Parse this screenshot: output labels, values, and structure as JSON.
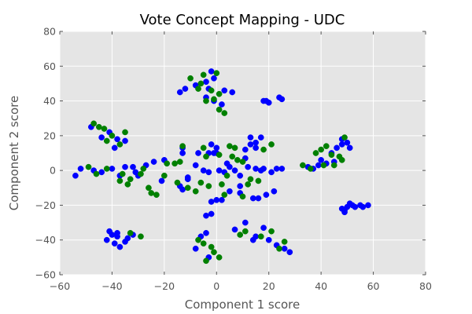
{
  "chart_data": {
    "type": "scatter",
    "title": "Vote Concept Mapping - UDC",
    "xlabel": "Component 1 score",
    "ylabel": "Component 2 score",
    "xlim": [
      -60,
      80
    ],
    "ylim": [
      -60,
      80
    ],
    "xticks": [
      "−60",
      "−40",
      "−20",
      "0",
      "20",
      "40",
      "60",
      "80"
    ],
    "yticks": [
      "−60",
      "−40",
      "−20",
      "0",
      "20",
      "40",
      "60",
      "80"
    ],
    "grid": true,
    "background_color": "#e5e5e5",
    "grid_color": "#ffffff",
    "series": [
      {
        "color": "#0000ff",
        "points": [
          [
            -2,
            57
          ],
          [
            -1,
            53
          ],
          [
            -4,
            51
          ],
          [
            -8,
            49
          ],
          [
            -12,
            47
          ],
          [
            -14,
            45
          ],
          [
            -3,
            47
          ],
          [
            3,
            46
          ],
          [
            6,
            45
          ],
          [
            -1,
            40
          ],
          [
            -4,
            42
          ],
          [
            2,
            38
          ],
          [
            18,
            40
          ],
          [
            19,
            40
          ],
          [
            20,
            39
          ],
          [
            24,
            42
          ],
          [
            25,
            41
          ],
          [
            -48,
            25
          ],
          [
            -41,
            22
          ],
          [
            -38,
            18
          ],
          [
            -35,
            17
          ],
          [
            -39,
            13
          ],
          [
            -44,
            19
          ],
          [
            -52,
            1
          ],
          [
            -54,
            -3
          ],
          [
            -47,
            0
          ],
          [
            -44,
            -1
          ],
          [
            -40,
            1
          ],
          [
            -35,
            2
          ],
          [
            -32,
            2
          ],
          [
            -31,
            -1
          ],
          [
            -37,
            -3
          ],
          [
            -24,
            5
          ],
          [
            -27,
            3
          ],
          [
            -20,
            6
          ],
          [
            -21,
            -6
          ],
          [
            -30,
            -3
          ],
          [
            -8,
            3
          ],
          [
            -7,
            10
          ],
          [
            -3,
            10
          ],
          [
            -1,
            10
          ],
          [
            0,
            10
          ],
          [
            0,
            13
          ],
          [
            -2,
            15
          ],
          [
            -13,
            10
          ],
          [
            -13,
            13
          ],
          [
            -3,
            -1
          ],
          [
            -5,
            0
          ],
          [
            -11,
            -4
          ],
          [
            -14,
            -9
          ],
          [
            -13,
            -11
          ],
          [
            -11,
            -5
          ],
          [
            1,
            0
          ],
          [
            3,
            -1
          ],
          [
            5,
            2
          ],
          [
            7,
            0
          ],
          [
            4,
            4
          ],
          [
            9,
            -3
          ],
          [
            12,
            2
          ],
          [
            15,
            1
          ],
          [
            17,
            0
          ],
          [
            11,
            7
          ],
          [
            11,
            12
          ],
          [
            13,
            15
          ],
          [
            15,
            16
          ],
          [
            13,
            19
          ],
          [
            17,
            19
          ],
          [
            15,
            13
          ],
          [
            9,
            -9
          ],
          [
            5,
            -12
          ],
          [
            2,
            -17
          ],
          [
            0,
            -17
          ],
          [
            -2,
            -18
          ],
          [
            -2,
            -25
          ],
          [
            -4,
            -26
          ],
          [
            9,
            -13
          ],
          [
            14,
            -16
          ],
          [
            16,
            -16
          ],
          [
            19,
            -14
          ],
          [
            21,
            -1
          ],
          [
            18,
            1
          ],
          [
            23,
            1
          ],
          [
            25,
            1
          ],
          [
            22,
            -12
          ],
          [
            -38,
            -38
          ],
          [
            -40,
            -37
          ],
          [
            -42,
            -40
          ],
          [
            -39,
            -42
          ],
          [
            -37,
            -44
          ],
          [
            -34,
            -39
          ],
          [
            -32,
            -37
          ],
          [
            -38,
            -36
          ],
          [
            -35,
            -41
          ],
          [
            -41,
            -35
          ],
          [
            -6,
            -38
          ],
          [
            -4,
            -36
          ],
          [
            -8,
            -45
          ],
          [
            -3,
            -50
          ],
          [
            7,
            -34
          ],
          [
            14,
            -40
          ],
          [
            15,
            -38
          ],
          [
            20,
            -40
          ],
          [
            23,
            -43
          ],
          [
            26,
            -45
          ],
          [
            28,
            -47
          ],
          [
            11,
            -30
          ],
          [
            18,
            -33
          ],
          [
            35,
            2
          ],
          [
            37,
            1
          ],
          [
            39,
            3
          ],
          [
            40,
            6
          ],
          [
            42,
            4
          ],
          [
            44,
            10
          ],
          [
            46,
            13
          ],
          [
            48,
            15
          ],
          [
            48,
            18
          ],
          [
            50,
            16
          ],
          [
            51,
            13
          ],
          [
            45,
            5
          ],
          [
            48,
            -22
          ],
          [
            49,
            -23
          ],
          [
            50,
            -21
          ],
          [
            52,
            -20
          ],
          [
            53,
            -21
          ],
          [
            55,
            -20
          ],
          [
            56,
            -21
          ],
          [
            58,
            -20
          ],
          [
            49,
            -24
          ],
          [
            51,
            -19
          ]
        ]
      },
      {
        "color": "#008000",
        "points": [
          [
            -10,
            53
          ],
          [
            -5,
            55
          ],
          [
            0,
            56
          ],
          [
            -6,
            50
          ],
          [
            -2,
            46
          ],
          [
            -7,
            47
          ],
          [
            -4,
            40
          ],
          [
            1,
            44
          ],
          [
            1,
            35
          ],
          [
            3,
            33
          ],
          [
            -1,
            41
          ],
          [
            -47,
            27
          ],
          [
            -45,
            25
          ],
          [
            -40,
            20
          ],
          [
            -42,
            17
          ],
          [
            -37,
            15
          ],
          [
            -35,
            22
          ],
          [
            -43,
            24
          ],
          [
            -49,
            2
          ],
          [
            -46,
            -2
          ],
          [
            -42,
            1
          ],
          [
            -37,
            -6
          ],
          [
            -34,
            -8
          ],
          [
            -33,
            -5
          ],
          [
            -36,
            -2
          ],
          [
            -29,
            -2
          ],
          [
            -28,
            1
          ],
          [
            -26,
            -10
          ],
          [
            -25,
            -13
          ],
          [
            -23,
            -14
          ],
          [
            -19,
            4
          ],
          [
            -16,
            4
          ],
          [
            -20,
            -3
          ],
          [
            -13,
            14
          ],
          [
            -14,
            5
          ],
          [
            -5,
            13
          ],
          [
            1,
            9
          ],
          [
            -15,
            -7
          ],
          [
            -11,
            -10
          ],
          [
            -8,
            -12
          ],
          [
            -6,
            -7
          ],
          [
            -3,
            -9
          ],
          [
            -4,
            8
          ],
          [
            2,
            -8
          ],
          [
            4,
            -3
          ],
          [
            6,
            8
          ],
          [
            8,
            6
          ],
          [
            10,
            5
          ],
          [
            13,
            -5
          ],
          [
            16,
            -6
          ],
          [
            12,
            -8
          ],
          [
            5,
            14
          ],
          [
            7,
            13
          ],
          [
            18,
            12
          ],
          [
            21,
            15
          ],
          [
            10,
            -15
          ],
          [
            3,
            -14
          ],
          [
            -33,
            -36
          ],
          [
            -29,
            -38
          ],
          [
            -7,
            -40
          ],
          [
            -5,
            -42
          ],
          [
            -2,
            -44
          ],
          [
            -1,
            -47
          ],
          [
            1,
            -50
          ],
          [
            -4,
            -52
          ],
          [
            9,
            -37
          ],
          [
            11,
            -35
          ],
          [
            17,
            -38
          ],
          [
            21,
            -35
          ],
          [
            24,
            -45
          ],
          [
            26,
            -41
          ],
          [
            33,
            3
          ],
          [
            36,
            1
          ],
          [
            38,
            10
          ],
          [
            40,
            12
          ],
          [
            42,
            14
          ],
          [
            44,
            9
          ],
          [
            47,
            8
          ],
          [
            48,
            6
          ],
          [
            45,
            3
          ],
          [
            49,
            19
          ],
          [
            41,
            3
          ]
        ]
      }
    ]
  }
}
